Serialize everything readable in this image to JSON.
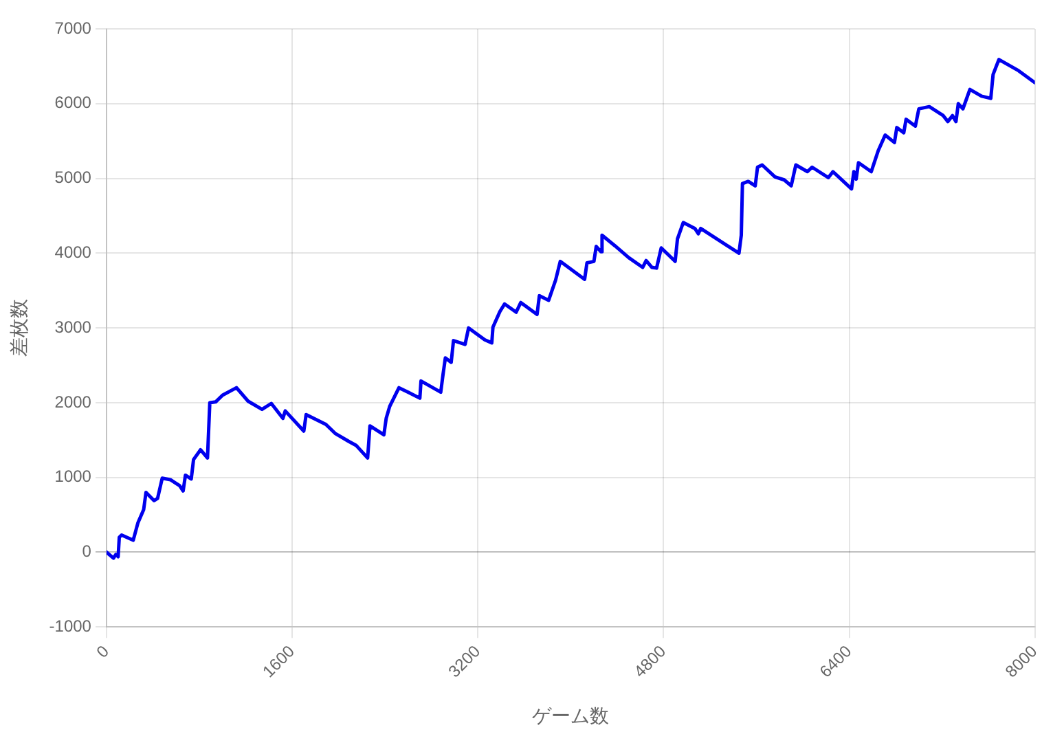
{
  "chart_data": {
    "type": "line",
    "xlabel": "ゲーム数",
    "ylabel": "差枚数",
    "x": [
      0,
      60,
      80,
      100,
      110,
      130,
      230,
      270,
      320,
      340,
      410,
      440,
      480,
      550,
      630,
      660,
      680,
      730,
      750,
      810,
      870,
      890,
      940,
      1000,
      1120,
      1220,
      1340,
      1420,
      1520,
      1540,
      1700,
      1720,
      1890,
      1970,
      2090,
      2150,
      2250,
      2270,
      2390,
      2410,
      2440,
      2520,
      2600,
      2700,
      2710,
      2880,
      2900,
      2920,
      2970,
      2990,
      3090,
      3120,
      3260,
      3320,
      3330,
      3390,
      3430,
      3530,
      3570,
      3710,
      3730,
      3810,
      3870,
      3910,
      4120,
      4140,
      4200,
      4220,
      4260,
      4270,
      4380,
      4500,
      4620,
      4650,
      4700,
      4740,
      4780,
      4900,
      4920,
      4970,
      5070,
      5100,
      5120,
      5330,
      5450,
      5470,
      5480,
      5530,
      5590,
      5610,
      5650,
      5760,
      5840,
      5900,
      5940,
      6040,
      6080,
      6220,
      6260,
      6420,
      6440,
      6460,
      6480,
      6590,
      6650,
      6710,
      6790,
      6810,
      6870,
      6890,
      6970,
      7000,
      7090,
      7210,
      7250,
      7290,
      7320,
      7340,
      7380,
      7440,
      7540,
      7620,
      7640,
      7690,
      7860,
      8000
    ],
    "series": [
      {
        "color": "#0000ee",
        "values": [
          0,
          -80,
          -30,
          -60,
          200,
          230,
          160,
          390,
          570,
          800,
          690,
          720,
          990,
          970,
          890,
          820,
          1030,
          980,
          1240,
          1370,
          1260,
          2000,
          2010,
          2100,
          2200,
          2020,
          1910,
          1990,
          1790,
          1890,
          1620,
          1840,
          1710,
          1590,
          1480,
          1430,
          1260,
          1690,
          1570,
          1790,
          1950,
          2200,
          2140,
          2060,
          2290,
          2140,
          2380,
          2600,
          2540,
          2830,
          2780,
          3000,
          2840,
          2800,
          3010,
          3220,
          3320,
          3210,
          3340,
          3180,
          3430,
          3370,
          3640,
          3890,
          3650,
          3870,
          3890,
          4090,
          4020,
          4240,
          4100,
          3940,
          3810,
          3900,
          3810,
          3800,
          4070,
          3890,
          4190,
          4410,
          4330,
          4260,
          4330,
          4120,
          4000,
          4240,
          4930,
          4960,
          4900,
          5150,
          5180,
          5020,
          4980,
          4900,
          5180,
          5090,
          5150,
          5010,
          5090,
          4860,
          5090,
          4990,
          5210,
          5090,
          5370,
          5580,
          5480,
          5680,
          5610,
          5790,
          5700,
          5930,
          5960,
          5840,
          5760,
          5840,
          5760,
          6000,
          5930,
          6190,
          6100,
          6070,
          6390,
          6590,
          6440,
          6280
        ]
      }
    ],
    "xlim": [
      0,
      8000
    ],
    "xticks": [
      0,
      1600,
      3200,
      4800,
      6400,
      8000
    ],
    "ylim": [
      -1000,
      7000
    ],
    "yticks": [
      -1000,
      0,
      1000,
      2000,
      3000,
      4000,
      5000,
      6000,
      7000
    ],
    "grid": true,
    "legend": false,
    "marker": "none",
    "line_style": "solid"
  }
}
